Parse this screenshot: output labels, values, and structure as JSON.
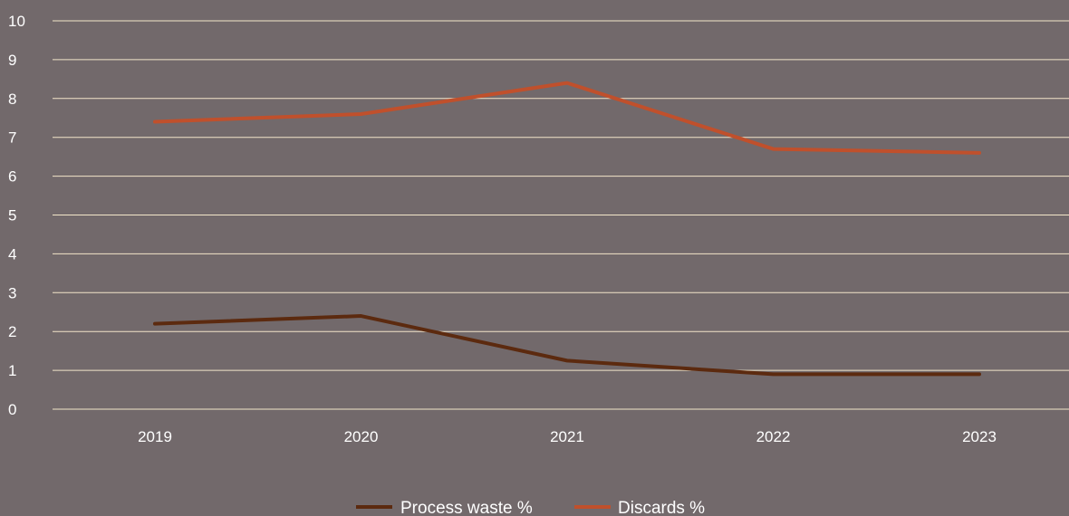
{
  "chart_data": {
    "type": "line",
    "categories": [
      "2019",
      "2020",
      "2021",
      "2022",
      "2023"
    ],
    "series": [
      {
        "name": "Process waste %",
        "values": [
          2.2,
          2.4,
          1.25,
          0.9,
          0.9
        ],
        "color": "#5c2a0f"
      },
      {
        "name": "Discards %",
        "values": [
          7.4,
          7.6,
          8.4,
          6.7,
          6.6
        ],
        "color": "#c0502c"
      }
    ],
    "ylim": [
      0,
      10
    ],
    "yticks": [
      "0",
      "1",
      "2",
      "3",
      "4",
      "5",
      "6",
      "7",
      "8",
      "9",
      "10"
    ],
    "grid": true,
    "legend_position": "bottom",
    "colors": {
      "background": "#72696b",
      "gridline": "#f3e6c9",
      "text": "#ffffff"
    }
  }
}
